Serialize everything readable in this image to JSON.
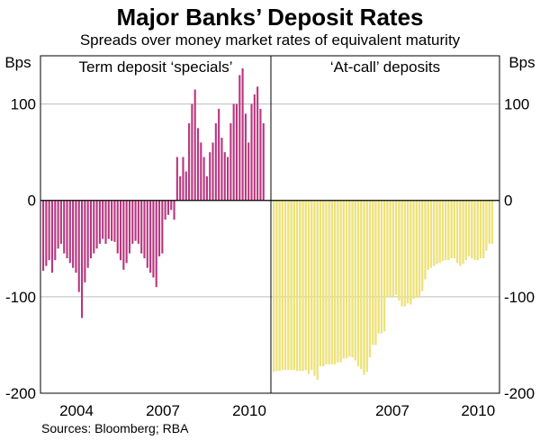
{
  "chart_data": {
    "type": "bar",
    "title": "Major Banks’ Deposit Rates",
    "subtitle": "Spreads over money market rates of equivalent maturity",
    "unit_left": "Bps",
    "unit_right": "Bps",
    "ylim": [
      -200,
      150
    ],
    "yticks": [
      {
        "value": 100,
        "label": "100"
      },
      {
        "value": 0,
        "label": "0"
      },
      {
        "value": -100,
        "label": "-100"
      },
      {
        "value": -200,
        "label": "-200"
      }
    ],
    "grid": true,
    "source": "Sources: Bloomberg; RBA",
    "panels": [
      {
        "title": "Term deposit ‘specials’",
        "color": "#b8367f",
        "x_start": 2003.0,
        "x_end": 2011.0,
        "xticks": [
          {
            "value": 2004,
            "label": "2004"
          },
          {
            "value": 2007,
            "label": "2007"
          },
          {
            "value": 2010,
            "label": "2010"
          }
        ],
        "values": [
          -73,
          -68,
          -62,
          -75,
          -62,
          -50,
          -45,
          -55,
          -60,
          -65,
          -70,
          -75,
          -95,
          -122,
          -85,
          -70,
          -60,
          -55,
          -50,
          -45,
          -40,
          -45,
          -40,
          -42,
          -43,
          -55,
          -62,
          -72,
          -65,
          -55,
          -45,
          -42,
          -45,
          -55,
          -60,
          -70,
          -75,
          -80,
          -90,
          -58,
          -55,
          -20,
          -15,
          -10,
          -20,
          45,
          25,
          45,
          30,
          80,
          100,
          115,
          75,
          60,
          45,
          25,
          50,
          60,
          80,
          95,
          65,
          50,
          45,
          80,
          100,
          100,
          130,
          137,
          90,
          60,
          100,
          110,
          118,
          95,
          80
        ],
        "value_offset": -200
      },
      {
        "title": "‘At-call’ deposits",
        "color": "#ede27a",
        "x_start": 2003.0,
        "x_end": 2011.0,
        "xticks": [
          {
            "value": 2007,
            "label": "2007"
          },
          {
            "value": 2010,
            "label": "2010"
          }
        ],
        "values": [
          -178,
          -177,
          -177,
          -176,
          -176,
          -176,
          -176,
          -176,
          -177,
          -177,
          -177,
          -176,
          -180,
          -176,
          -182,
          -186,
          -172,
          -172,
          -170,
          -170,
          -170,
          -170,
          -168,
          -168,
          -164,
          -164,
          -162,
          -163,
          -166,
          -172,
          -175,
          -181,
          -178,
          -163,
          -150,
          -150,
          -138,
          -138,
          -136,
          -100,
          -100,
          -100,
          -98,
          -104,
          -110,
          -110,
          -107,
          -108,
          -102,
          -101,
          -100,
          -94,
          -82,
          -72,
          -70,
          -68,
          -66,
          -65,
          -63,
          -62,
          -62,
          -60,
          -60,
          -65,
          -68,
          -66,
          -62,
          -58,
          -60,
          -62,
          -62,
          -60,
          -60,
          -52,
          -45,
          -45
        ]
      }
    ]
  }
}
